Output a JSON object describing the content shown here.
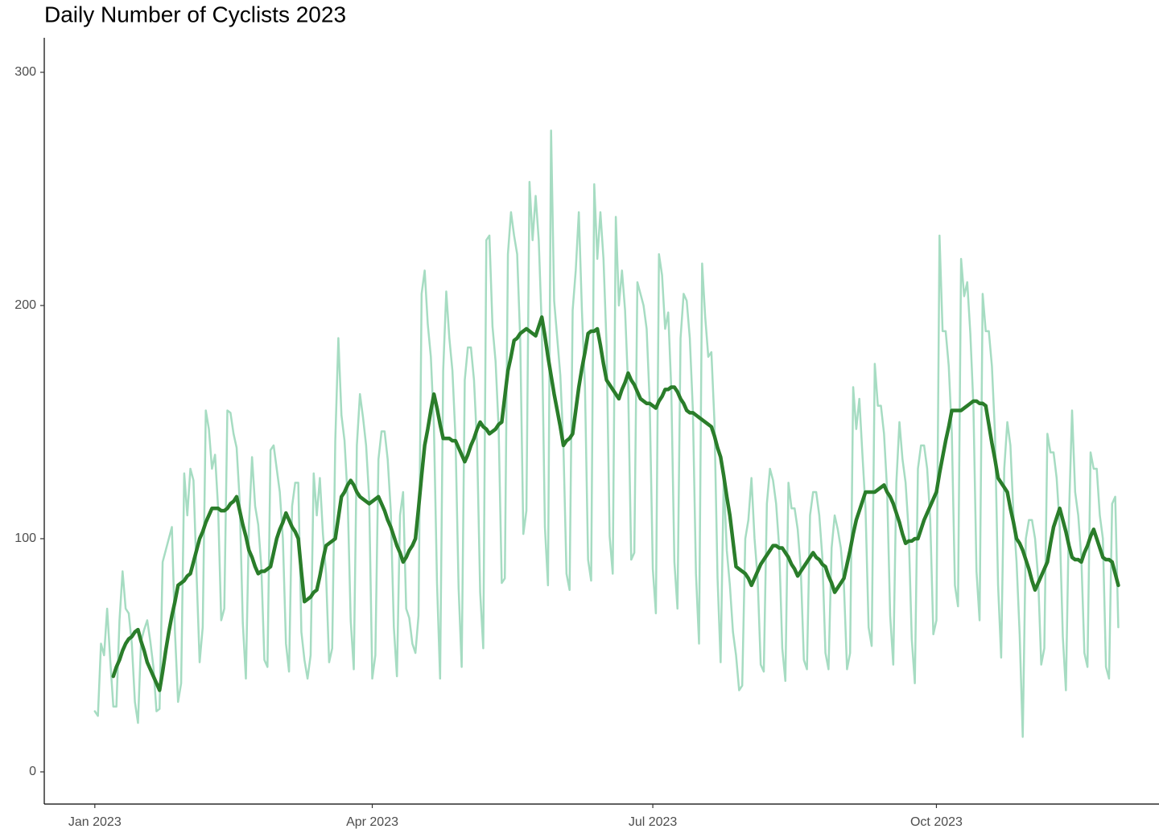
{
  "chart_data": {
    "type": "line",
    "title": "Daily Number of Cyclists 2023",
    "x": [
      1,
      2,
      3,
      4,
      5,
      6,
      7,
      8,
      9,
      10,
      11,
      12,
      13,
      14,
      15,
      16,
      17,
      18,
      19,
      20,
      21,
      22,
      23,
      24,
      25,
      26,
      27,
      28,
      29,
      30,
      31,
      32,
      33,
      34,
      35,
      36,
      37,
      38,
      39,
      40,
      41,
      42,
      43,
      44,
      45,
      46,
      47,
      48,
      49,
      50,
      51,
      52,
      53,
      54,
      55,
      56,
      57,
      58,
      59,
      60,
      61,
      62,
      63,
      64,
      65,
      66,
      67,
      68,
      69,
      70,
      71,
      72,
      73,
      74,
      75,
      76,
      77,
      78,
      79,
      80,
      81,
      82,
      83,
      84,
      85,
      86,
      87,
      88,
      89,
      90,
      91,
      92,
      93,
      94,
      95,
      96,
      97,
      98,
      99,
      100,
      101,
      102,
      103,
      104,
      105,
      106,
      107,
      108,
      109,
      110,
      111,
      112,
      113,
      114,
      115,
      116,
      117,
      118,
      119,
      120,
      121,
      122,
      123,
      124,
      125,
      126,
      127,
      128,
      129,
      130,
      131,
      132,
      133,
      134,
      135,
      136,
      137,
      138,
      139,
      140,
      141,
      142,
      143,
      144,
      145,
      146,
      147,
      148,
      149,
      150,
      151,
      152,
      153,
      154,
      155,
      156,
      157,
      158,
      159,
      160,
      161,
      162,
      163,
      164,
      165,
      166,
      167,
      168,
      169,
      170,
      171,
      172,
      173,
      174,
      175,
      176,
      177,
      178,
      179,
      180,
      181,
      182,
      183,
      184,
      185,
      186,
      187,
      188,
      189,
      190,
      191,
      192,
      193,
      194,
      195,
      196,
      197,
      198,
      199,
      200,
      201,
      202,
      203,
      204,
      205,
      206,
      207,
      208,
      209,
      210,
      211,
      212,
      213,
      214,
      215,
      216,
      217,
      218,
      219,
      220,
      221,
      222,
      223,
      224,
      225,
      226,
      227,
      228,
      229,
      230,
      231,
      232,
      233,
      234,
      235,
      236,
      237,
      238,
      239,
      240,
      241,
      242,
      243,
      244,
      245,
      246,
      247,
      248,
      249,
      250,
      251,
      252,
      253,
      254,
      255,
      256,
      257,
      258,
      259,
      260,
      261,
      262,
      263,
      264,
      265,
      266,
      267,
      268,
      269,
      270,
      271,
      272,
      273,
      274,
      275,
      276,
      277,
      278,
      279,
      280,
      281,
      282,
      283,
      284,
      285,
      286,
      287,
      288,
      289,
      290,
      291,
      292,
      293,
      294,
      295,
      296,
      297,
      298,
      299,
      300,
      301,
      302,
      303,
      304,
      305,
      306,
      307,
      308,
      309,
      310,
      311,
      312,
      313,
      314,
      315,
      316,
      317,
      318,
      319,
      320,
      321,
      322,
      323,
      324,
      325,
      326,
      327,
      328,
      329,
      330,
      331,
      332,
      333
    ],
    "series": [
      {
        "color": "#a6dcc2",
        "width": 2.5,
        "values": [
          26,
          24,
          55,
          50,
          70,
          48,
          28,
          28,
          65,
          86,
          70,
          68,
          55,
          30,
          21,
          56,
          61,
          65,
          56,
          45,
          26,
          27,
          90,
          95,
          100,
          105,
          60,
          30,
          38,
          128,
          110,
          130,
          125,
          85,
          47,
          62,
          155,
          147,
          130,
          136,
          113,
          65,
          70,
          155,
          154,
          145,
          139,
          116,
          64,
          40,
          106,
          135,
          114,
          106,
          88,
          48,
          45,
          138,
          140,
          130,
          120,
          100,
          55,
          43,
          114,
          124,
          124,
          60,
          48,
          40,
          50,
          128,
          110,
          126,
          102,
          85,
          47,
          53,
          142,
          186,
          153,
          142,
          118,
          65,
          44,
          140,
          162,
          152,
          140,
          117,
          40,
          50,
          134,
          146,
          146,
          134,
          112,
          62,
          41,
          110,
          120,
          70,
          66,
          55,
          51,
          67,
          205,
          215,
          192,
          178,
          148,
          81,
          40,
          172,
          206,
          186,
          172,
          143,
          79,
          45,
          168,
          182,
          182,
          168,
          140,
          77,
          53,
          228,
          230,
          191,
          176,
          147,
          81,
          83,
          222,
          240,
          230,
          222,
          185,
          102,
          112,
          253,
          228,
          247,
          228,
          190,
          105,
          80,
          275,
          202,
          186,
          170,
          140,
          85,
          78,
          198,
          215,
          240,
          198,
          165,
          91,
          82,
          252,
          220,
          240,
          220,
          183,
          101,
          85,
          238,
          200,
          215,
          198,
          165,
          91,
          94,
          210,
          205,
          200,
          190,
          158,
          87,
          68,
          222,
          213,
          190,
          197,
          164,
          90,
          70,
          186,
          205,
          202,
          186,
          155,
          85,
          55,
          218,
          195,
          178,
          180,
          150,
          83,
          47,
          126,
          95,
          80,
          60,
          50,
          35,
          37,
          100,
          108,
          126,
          100,
          83,
          46,
          43,
          115,
          130,
          125,
          115,
          96,
          53,
          39,
          124,
          113,
          113,
          104,
          87,
          48,
          44,
          110,
          120,
          120,
          110,
          92,
          51,
          44,
          96,
          110,
          104,
          96,
          80,
          44,
          51,
          165,
          147,
          160,
          136,
          113,
          62,
          54,
          175,
          157,
          157,
          145,
          121,
          67,
          46,
          124,
          150,
          134,
          124,
          103,
          57,
          38,
          130,
          140,
          140,
          130,
          108,
          59,
          65,
          230,
          189,
          189,
          174,
          145,
          80,
          71,
          220,
          204,
          210,
          188,
          157,
          86,
          65,
          205,
          189,
          189,
          174,
          145,
          80,
          49,
          130,
          150,
          140,
          110,
          90,
          59,
          15,
          100,
          108,
          108,
          100,
          83,
          46,
          53,
          145,
          137,
          137,
          126,
          105,
          58,
          35,
          110,
          155,
          120,
          110,
          92,
          51,
          45,
          137,
          130,
          130,
          110,
          100,
          45,
          40,
          115,
          118,
          62
        ]
      },
      {
        "color": "#2a7d2a",
        "width": 4.5,
        "values": [
          null,
          null,
          null,
          null,
          null,
          null,
          41,
          45,
          48,
          52,
          55,
          57,
          58,
          60,
          61,
          56,
          52,
          47,
          44,
          41,
          38,
          35,
          43,
          52,
          60,
          67,
          73,
          80,
          81,
          82,
          84,
          85,
          90,
          95,
          100,
          103,
          107,
          110,
          113,
          113,
          113,
          112,
          112,
          113,
          115,
          116,
          118,
          112,
          106,
          101,
          95,
          92,
          88,
          85,
          86,
          86,
          87,
          88,
          94,
          100,
          104,
          107,
          111,
          108,
          105,
          103,
          100,
          86,
          73,
          74,
          75,
          77,
          78,
          84,
          91,
          97,
          98,
          99,
          100,
          109,
          118,
          120,
          123,
          125,
          123,
          120,
          118,
          117,
          116,
          115,
          116,
          117,
          118,
          115,
          112,
          108,
          105,
          101,
          97,
          94,
          90,
          92,
          95,
          97,
          100,
          113,
          127,
          140,
          147,
          155,
          162,
          156,
          149,
          143,
          143,
          143,
          142,
          142,
          139,
          136,
          133,
          136,
          140,
          143,
          147,
          150,
          148,
          147,
          145,
          146,
          147,
          149,
          150,
          161,
          172,
          178,
          185,
          186,
          188,
          189,
          190,
          189,
          188,
          187,
          191,
          195,
          187,
          178,
          170,
          162,
          155,
          148,
          140,
          142,
          143,
          145,
          155,
          165,
          173,
          180,
          188,
          189,
          189,
          190,
          183,
          175,
          168,
          166,
          164,
          162,
          160,
          164,
          167,
          171,
          168,
          166,
          163,
          160,
          159,
          158,
          158,
          157,
          156,
          159,
          161,
          164,
          164,
          165,
          165,
          163,
          160,
          158,
          155,
          154,
          154,
          153,
          152,
          151,
          150,
          149,
          148,
          144,
          139,
          135,
          127,
          118,
          110,
          99,
          88,
          87,
          86,
          85,
          83,
          80,
          83,
          86,
          89,
          91,
          93,
          95,
          97,
          97,
          96,
          96,
          94,
          92,
          89,
          87,
          84,
          86,
          88,
          90,
          92,
          94,
          92,
          91,
          89,
          88,
          84,
          81,
          77,
          79,
          81,
          83,
          89,
          95,
          102,
          108,
          112,
          116,
          120,
          120,
          120,
          120,
          121,
          122,
          123,
          120,
          118,
          115,
          111,
          107,
          102,
          98,
          99,
          99,
          100,
          100,
          104,
          108,
          111,
          114,
          117,
          120,
          128,
          135,
          142,
          148,
          155,
          155,
          155,
          155,
          156,
          157,
          158,
          159,
          159,
          158,
          158,
          157,
          149,
          141,
          134,
          126,
          124,
          122,
          120,
          113,
          107,
          100,
          98,
          95,
          91,
          87,
          82,
          78,
          81,
          84,
          87,
          90,
          98,
          105,
          109,
          113,
          108,
          103,
          97,
          92,
          91,
          91,
          90,
          94,
          97,
          101,
          104,
          100,
          96,
          92,
          91,
          91,
          90,
          85,
          80
        ]
      }
    ],
    "xlim": [
      -15.4,
      346.2
    ],
    "xticks": [
      {
        "value": 1,
        "label": "Jan 2023"
      },
      {
        "value": 91,
        "label": "Apr 2023"
      },
      {
        "value": 182,
        "label": "Jul 2023"
      },
      {
        "value": 274,
        "label": "Oct 2023"
      }
    ],
    "ylim": [
      -13.8,
      314.8
    ],
    "yticks": [
      0,
      100,
      200,
      300
    ],
    "grid": false
  }
}
